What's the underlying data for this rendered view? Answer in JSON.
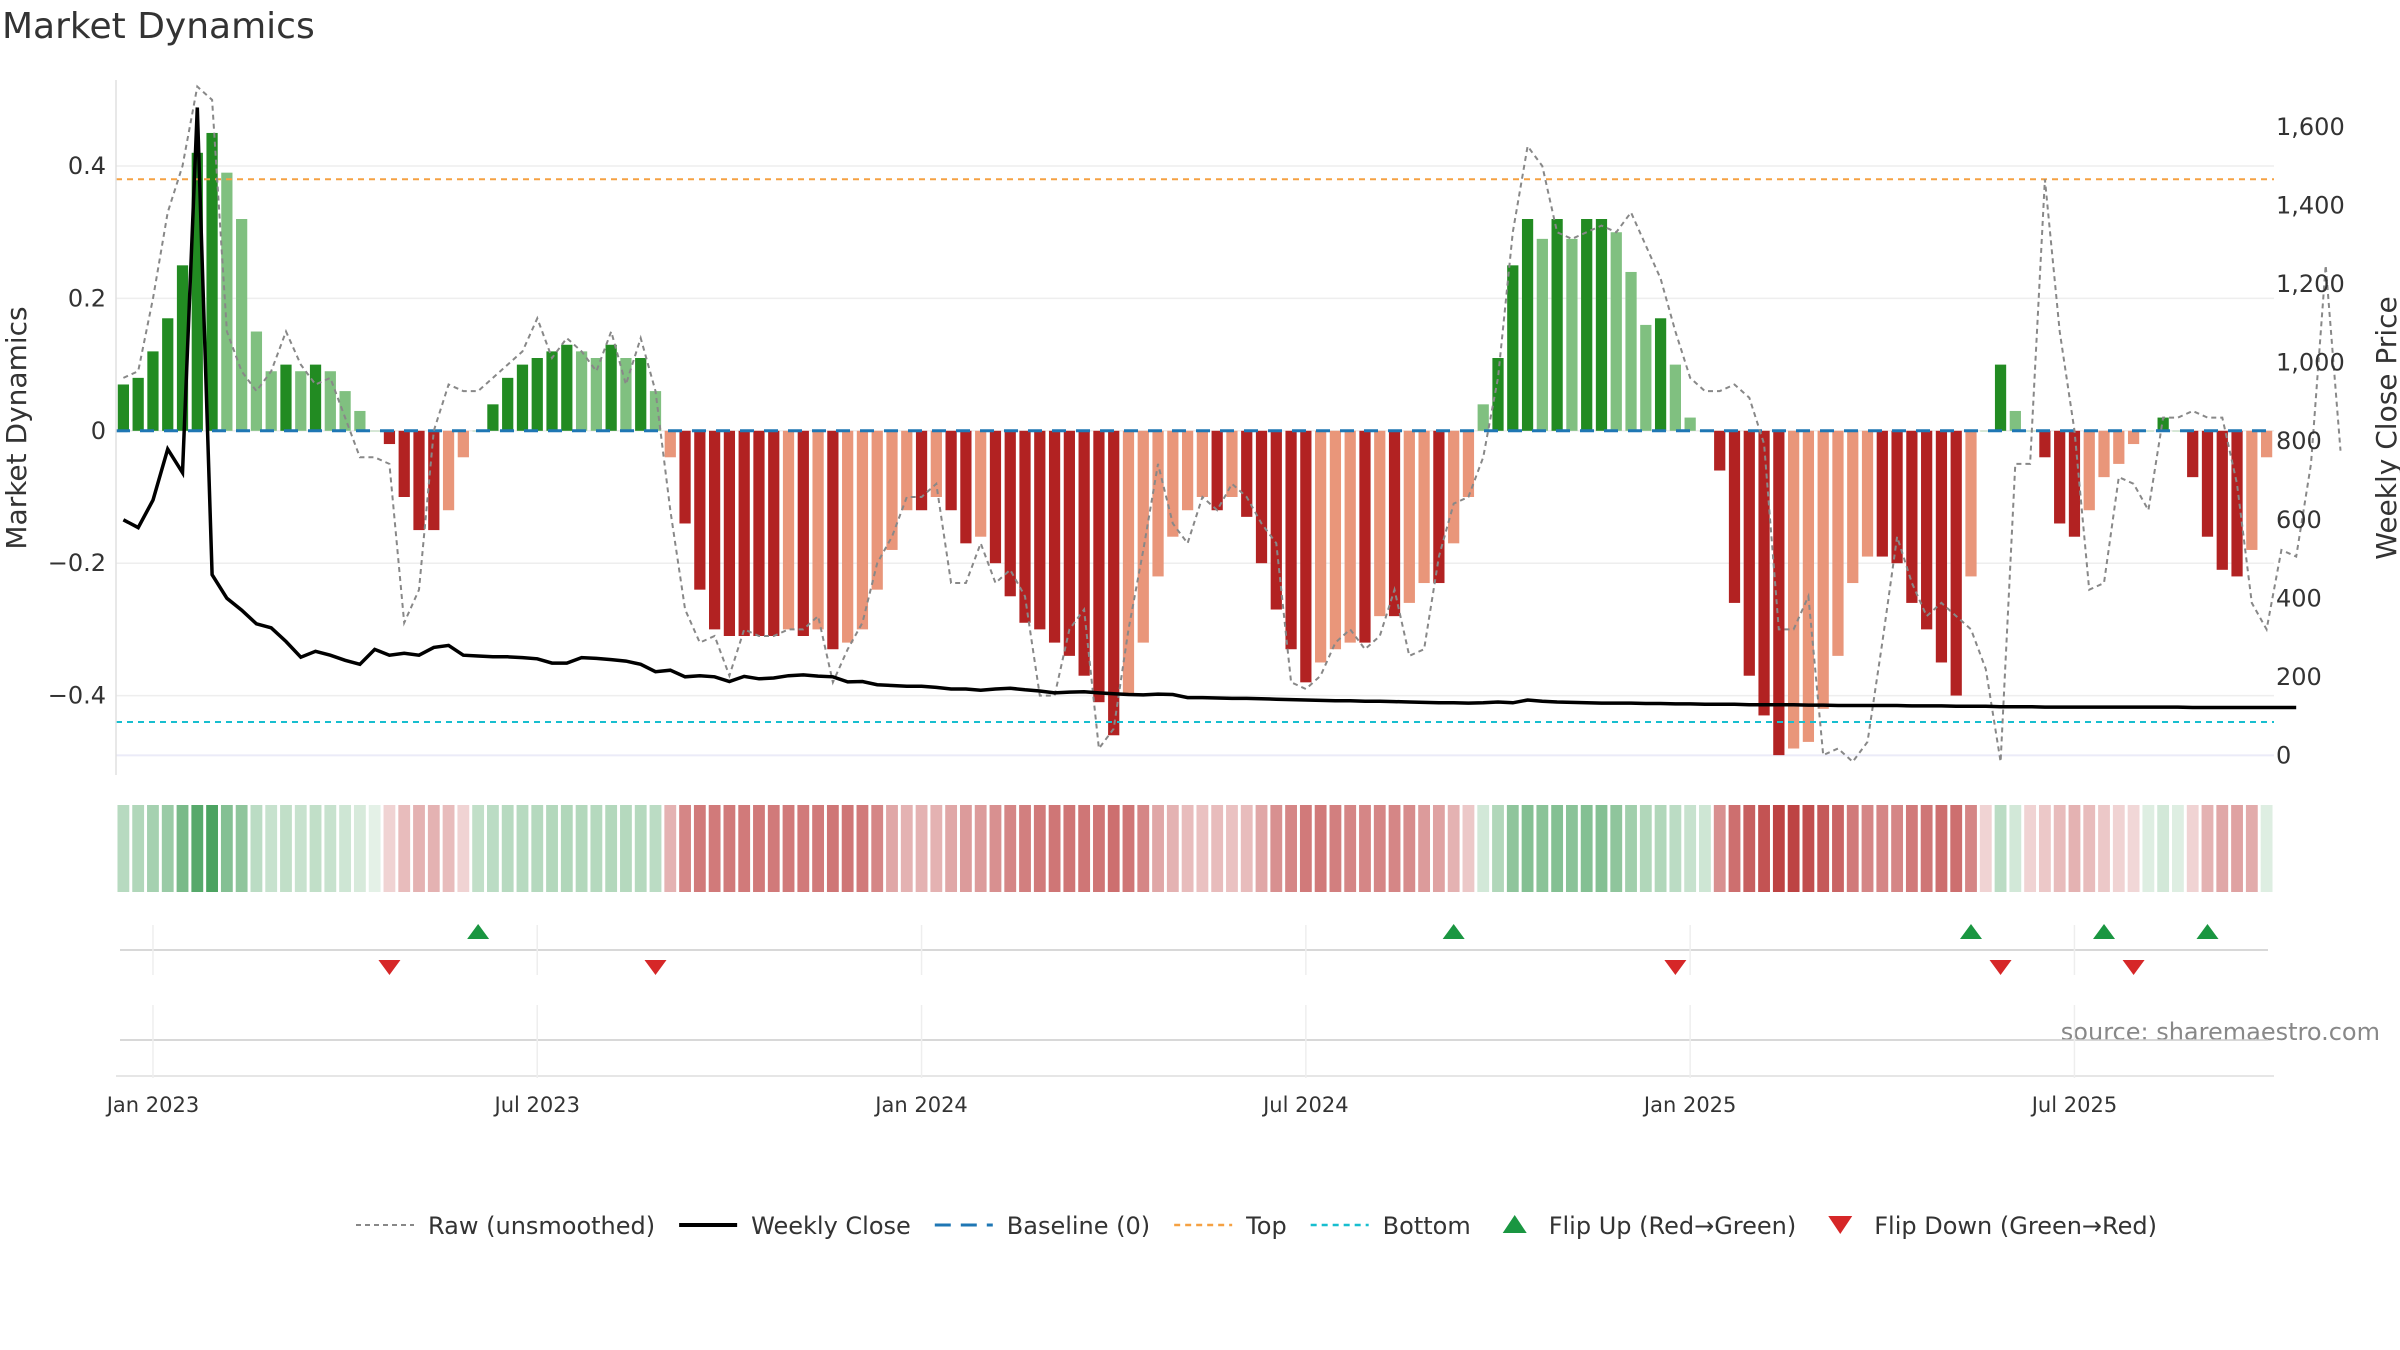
{
  "chart_data": {
    "type": "bar",
    "title": "Market Dynamics",
    "ylabel": "Market Dynamics",
    "y2label": "Weekly Close Price",
    "source": "source: sharemaestro.com",
    "ylim": [
      -0.52,
      0.53
    ],
    "y2lim": [
      -50,
      1720
    ],
    "left_ticks": [
      {
        "v": 0.4,
        "label": "0.4"
      },
      {
        "v": 0.2,
        "label": "0.2"
      },
      {
        "v": 0,
        "label": "0"
      },
      {
        "v": -0.2,
        "label": "−0.2"
      },
      {
        "v": -0.4,
        "label": "−0.4"
      }
    ],
    "right_ticks": [
      {
        "v": 1600,
        "label": "1,600"
      },
      {
        "v": 1400,
        "label": "1,400"
      },
      {
        "v": 1200,
        "label": "1,200"
      },
      {
        "v": 1000,
        "label": "1,000"
      },
      {
        "v": 800,
        "label": "800"
      },
      {
        "v": 600,
        "label": "600"
      },
      {
        "v": 400,
        "label": "400"
      },
      {
        "v": 200,
        "label": "200"
      },
      {
        "v": 0,
        "label": "0"
      }
    ],
    "date_ticks": [
      {
        "week": 2,
        "label": "Jan 2023"
      },
      {
        "week": 28,
        "label": "Jul 2023"
      },
      {
        "week": 54,
        "label": "Jan 2024"
      },
      {
        "week": 80,
        "label": "Jul 2024"
      },
      {
        "week": 106,
        "label": "Jan 2025"
      },
      {
        "week": 132,
        "label": "Jul 2025"
      }
    ],
    "top_line": 0.38,
    "bottom_line": -0.44,
    "baseline": 0,
    "values": [
      0.07,
      0.08,
      0.12,
      0.17,
      0.25,
      0.42,
      0.45,
      0.39,
      0.32,
      0.15,
      0.09,
      0.1,
      0.09,
      0.1,
      0.09,
      0.06,
      0.03,
      0.0,
      -0.02,
      -0.1,
      -0.15,
      -0.15,
      -0.12,
      -0.04,
      0.0,
      0.04,
      0.08,
      0.1,
      0.11,
      0.12,
      0.13,
      0.12,
      0.11,
      0.13,
      0.11,
      0.11,
      0.06,
      -0.04,
      -0.14,
      -0.24,
      -0.3,
      -0.31,
      -0.31,
      -0.31,
      -0.31,
      -0.3,
      -0.31,
      -0.3,
      -0.33,
      -0.32,
      -0.3,
      -0.24,
      -0.18,
      -0.12,
      -0.12,
      -0.1,
      -0.12,
      -0.17,
      -0.16,
      -0.2,
      -0.25,
      -0.29,
      -0.3,
      -0.32,
      -0.34,
      -0.37,
      -0.41,
      -0.46,
      -0.4,
      -0.32,
      -0.22,
      -0.16,
      -0.12,
      -0.1,
      -0.12,
      -0.1,
      -0.13,
      -0.2,
      -0.27,
      -0.33,
      -0.38,
      -0.35,
      -0.33,
      -0.32,
      -0.32,
      -0.28,
      -0.28,
      -0.26,
      -0.23,
      -0.23,
      -0.17,
      -0.1,
      0.04,
      0.11,
      0.25,
      0.32,
      0.29,
      0.32,
      0.29,
      0.32,
      0.32,
      0.3,
      0.24,
      0.16,
      0.17,
      0.1,
      0.02,
      0.0,
      -0.06,
      -0.26,
      -0.37,
      -0.43,
      -0.49,
      -0.48,
      -0.47,
      -0.42,
      -0.34,
      -0.23,
      -0.19,
      -0.19,
      -0.2,
      -0.26,
      -0.3,
      -0.35,
      -0.4,
      -0.22,
      0.0,
      0.1,
      0.03,
      0.0,
      -0.04,
      -0.14,
      -0.16,
      -0.12,
      -0.07,
      -0.05,
      -0.02,
      0.0,
      0.02,
      0.0,
      -0.07,
      -0.16,
      -0.21,
      -0.22,
      -0.18,
      -0.04
    ],
    "raw": [
      0.08,
      0.09,
      0.2,
      0.33,
      0.4,
      0.52,
      0.5,
      0.15,
      0.09,
      0.06,
      0.09,
      0.15,
      0.1,
      0.07,
      0.08,
      0.02,
      -0.04,
      -0.04,
      -0.05,
      -0.29,
      -0.24,
      0.0,
      0.07,
      0.06,
      0.06,
      0.08,
      0.1,
      0.12,
      0.17,
      0.11,
      0.14,
      0.12,
      0.09,
      0.15,
      0.07,
      0.14,
      0.06,
      -0.12,
      -0.27,
      -0.32,
      -0.31,
      -0.37,
      -0.3,
      -0.31,
      -0.31,
      -0.3,
      -0.3,
      -0.28,
      -0.38,
      -0.33,
      -0.29,
      -0.2,
      -0.16,
      -0.1,
      -0.1,
      -0.08,
      -0.23,
      -0.23,
      -0.17,
      -0.23,
      -0.21,
      -0.25,
      -0.4,
      -0.4,
      -0.3,
      -0.27,
      -0.48,
      -0.45,
      -0.3,
      -0.18,
      -0.05,
      -0.14,
      -0.17,
      -0.1,
      -0.12,
      -0.08,
      -0.1,
      -0.14,
      -0.17,
      -0.38,
      -0.39,
      -0.37,
      -0.32,
      -0.3,
      -0.33,
      -0.31,
      -0.24,
      -0.34,
      -0.33,
      -0.19,
      -0.11,
      -0.1,
      -0.04,
      0.08,
      0.3,
      0.43,
      0.4,
      0.3,
      0.29,
      0.3,
      0.31,
      0.3,
      0.33,
      0.28,
      0.23,
      0.15,
      0.08,
      0.06,
      0.06,
      0.07,
      0.05,
      -0.02,
      -0.3,
      -0.3,
      -0.25,
      -0.49,
      -0.48,
      -0.5,
      -0.47,
      -0.32,
      -0.16,
      -0.23,
      -0.28,
      -0.26,
      -0.28,
      -0.3,
      -0.36,
      -0.5,
      -0.05,
      -0.05,
      0.38,
      0.15,
      0.0,
      -0.24,
      -0.23,
      -0.07,
      -0.08,
      -0.12,
      0.02,
      0.02,
      0.03,
      0.02,
      0.02,
      -0.08,
      -0.26,
      -0.3,
      -0.18,
      -0.19,
      -0.05,
      0.25,
      -0.03
    ],
    "price": [
      600,
      580,
      650,
      780,
      720,
      1650,
      460,
      400,
      370,
      335,
      325,
      290,
      250,
      265,
      255,
      242,
      232,
      270,
      255,
      260,
      255,
      275,
      280,
      255,
      253,
      251,
      251,
      249,
      246,
      235,
      235,
      249,
      247,
      244,
      240,
      232,
      213,
      217,
      200,
      203,
      200,
      188,
      201,
      195,
      197,
      203,
      205,
      202,
      200,
      187,
      188,
      180,
      178,
      176,
      176,
      173,
      169,
      169,
      166,
      169,
      171,
      167,
      164,
      159,
      161,
      162,
      159,
      157,
      155,
      154,
      156,
      155,
      147,
      147,
      146,
      145,
      145,
      144,
      143,
      142,
      141,
      140,
      139,
      139,
      138,
      138,
      137,
      136,
      135,
      134,
      134,
      133,
      134,
      136,
      134,
      141,
      138,
      136,
      135,
      134,
      133,
      133,
      133,
      132,
      132,
      131,
      131,
      130,
      130,
      130,
      129,
      129,
      129,
      129,
      128,
      128,
      127,
      127,
      127,
      127,
      127,
      126,
      126,
      126,
      125,
      125,
      125,
      124,
      124,
      124,
      123,
      123,
      123,
      123,
      123,
      123,
      123,
      123,
      123,
      123,
      122,
      122,
      122,
      122,
      122,
      122,
      122,
      122
    ],
    "heat_values": [
      0.32,
      0.35,
      0.4,
      0.45,
      0.6,
      0.75,
      0.8,
      0.55,
      0.5,
      0.3,
      0.25,
      0.28,
      0.25,
      0.28,
      0.25,
      0.22,
      0.18,
      0.1,
      -0.2,
      -0.3,
      -0.35,
      -0.35,
      -0.3,
      -0.2,
      0.28,
      0.3,
      0.32,
      0.32,
      0.33,
      0.34,
      0.35,
      0.34,
      0.33,
      0.34,
      0.33,
      0.33,
      0.3,
      -0.35,
      -0.55,
      -0.6,
      -0.6,
      -0.6,
      -0.6,
      -0.6,
      -0.6,
      -0.6,
      -0.6,
      -0.6,
      -0.62,
      -0.62,
      -0.6,
      -0.55,
      -0.4,
      -0.35,
      -0.35,
      -0.35,
      -0.4,
      -0.45,
      -0.45,
      -0.5,
      -0.55,
      -0.58,
      -0.6,
      -0.62,
      -0.62,
      -0.62,
      -0.62,
      -0.65,
      -0.62,
      -0.55,
      -0.4,
      -0.35,
      -0.3,
      -0.28,
      -0.3,
      -0.28,
      -0.3,
      -0.4,
      -0.5,
      -0.55,
      -0.6,
      -0.6,
      -0.58,
      -0.55,
      -0.55,
      -0.55,
      -0.55,
      -0.52,
      -0.45,
      -0.42,
      -0.35,
      -0.25,
      0.2,
      0.35,
      0.5,
      0.55,
      0.52,
      0.55,
      0.52,
      0.55,
      0.55,
      0.5,
      0.42,
      0.35,
      0.35,
      0.3,
      0.25,
      0.22,
      -0.5,
      -0.65,
      -0.72,
      -0.78,
      -0.85,
      -0.85,
      -0.8,
      -0.75,
      -0.7,
      -0.6,
      -0.55,
      -0.55,
      -0.55,
      -0.6,
      -0.62,
      -0.65,
      -0.65,
      -0.55,
      -0.2,
      0.3,
      0.2,
      -0.2,
      -0.25,
      -0.3,
      -0.35,
      -0.3,
      -0.25,
      -0.2,
      -0.18,
      0.15,
      0.2,
      0.15,
      -0.2,
      -0.35,
      -0.4,
      -0.42,
      -0.38,
      0.15
    ],
    "flip_up_weeks": [
      24,
      90,
      125,
      134,
      141
    ],
    "flip_down_weeks": [
      18,
      36,
      105,
      127,
      136
    ],
    "colors": {
      "strong_green": "#228b22",
      "light_green": "#80c080",
      "strong_red": "#b22222",
      "light_red": "#e9967a",
      "raw_line": "#888888",
      "price_line": "#000000",
      "baseline": "#1f77b4",
      "top": "#f5a142",
      "bottom": "#17becf",
      "flip_up": "#1a9641",
      "flip_down": "#d62728",
      "grid": "#eeeeee"
    },
    "legend": [
      {
        "key": "raw",
        "label": "Raw (unsmoothed)"
      },
      {
        "key": "price",
        "label": "Weekly Close"
      },
      {
        "key": "baseline",
        "label": "Baseline (0)"
      },
      {
        "key": "top",
        "label": "Top"
      },
      {
        "key": "bottom",
        "label": "Bottom"
      },
      {
        "key": "flip_up",
        "label": "Flip Up (Red→Green)"
      },
      {
        "key": "flip_down",
        "label": "Flip Down (Green→Red)"
      }
    ]
  }
}
